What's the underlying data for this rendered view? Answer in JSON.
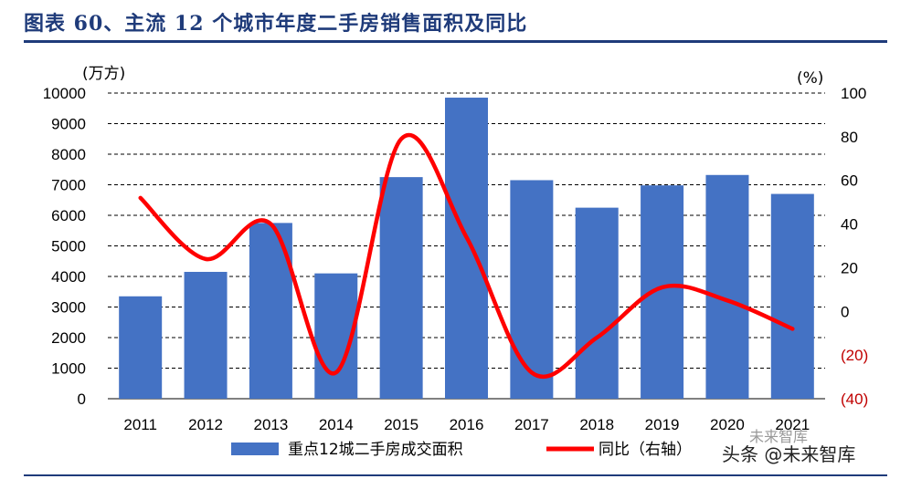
{
  "title": "图表 60、主流 12 个城市年度二手房销售面积及同比",
  "watermark": "头条 @未来智库",
  "watermark_faint": "未来智库",
  "colors": {
    "bar": "#4472c4",
    "line": "#ff0000",
    "rule": "#1f3b7a",
    "negative_tick": "#c00000"
  },
  "chart_data": {
    "type": "bar",
    "categories": [
      "2011",
      "2012",
      "2013",
      "2014",
      "2015",
      "2016",
      "2017",
      "2018",
      "2019",
      "2020",
      "2021"
    ],
    "series": [
      {
        "name": "重点12城二手房成交面积",
        "type": "bar",
        "axis": "left",
        "values": [
          3350,
          4150,
          5750,
          4100,
          7250,
          9850,
          7150,
          6250,
          6980,
          7320,
          6700
        ]
      },
      {
        "name": "同比（右轴）",
        "type": "line",
        "axis": "right",
        "smooth": true,
        "values": [
          52,
          24,
          40,
          -28,
          79,
          34,
          -28,
          -12,
          11,
          5,
          -8
        ]
      }
    ],
    "left_axis": {
      "unit": "(万方)",
      "min": 0,
      "max": 10000,
      "step": 1000,
      "ticks": [
        "0",
        "1000",
        "2000",
        "3000",
        "4000",
        "5000",
        "6000",
        "7000",
        "8000",
        "9000",
        "10000"
      ]
    },
    "right_axis": {
      "unit": "(%)",
      "min": -40,
      "max": 100,
      "step": 20,
      "ticks": [
        "(40)",
        "(20)",
        "0",
        "20",
        "40",
        "60",
        "80",
        "100"
      ]
    },
    "grid": "horizontal dashed",
    "legend_position": "bottom"
  }
}
